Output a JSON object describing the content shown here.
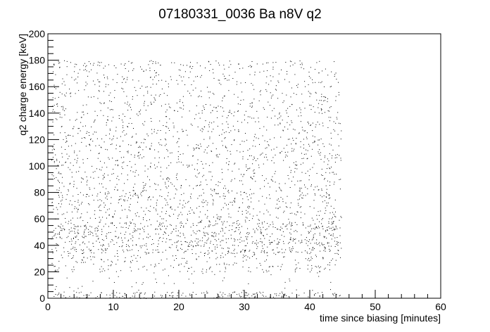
{
  "chart_data": {
    "type": "scatter",
    "title": "07180331_0036 Ba n8V q2",
    "xlabel": "time since biasing [minutes]",
    "ylabel": "q2 charge energy [keV]",
    "xlim": [
      0,
      60
    ],
    "ylim": [
      0,
      200
    ],
    "x_ticks": [
      0,
      10,
      20,
      30,
      40,
      50,
      60
    ],
    "y_ticks": [
      0,
      20,
      40,
      60,
      80,
      100,
      120,
      140,
      160,
      180,
      200
    ],
    "x_tick_labels": [
      "0",
      "10",
      "20",
      "30",
      "40",
      "50",
      "60"
    ],
    "y_tick_labels": [
      "0",
      "20",
      "40",
      "60",
      "80",
      "100",
      "120",
      "140",
      "160",
      "180",
      "200"
    ],
    "x_minor_per_major": 5,
    "y_minor_per_major": 4,
    "grid": false,
    "legend": "none",
    "marker_color": "#000000",
    "data_extent": {
      "x": [
        0.5,
        44.8
      ],
      "y": [
        0,
        180
      ]
    },
    "density_bands": [
      {
        "y": [
          0,
          5
        ],
        "relative_density": 1.0
      },
      {
        "y": [
          5,
          20
        ],
        "relative_density": 0.08
      },
      {
        "y": [
          20,
          34
        ],
        "relative_density": 0.45
      },
      {
        "y": [
          34,
          58
        ],
        "relative_density": 0.95
      },
      {
        "y": [
          58,
          80
        ],
        "relative_density": 0.55
      },
      {
        "y": [
          80,
          130
        ],
        "relative_density": 0.45
      },
      {
        "y": [
          130,
          180
        ],
        "relative_density": 0.38
      }
    ]
  }
}
